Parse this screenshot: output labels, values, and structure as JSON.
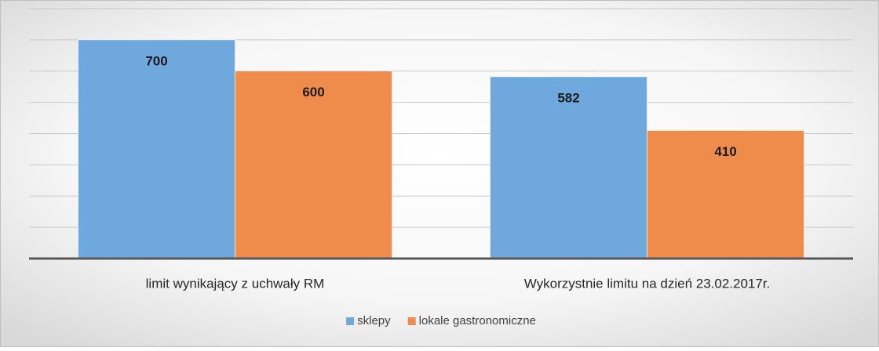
{
  "chart_data": {
    "type": "bar",
    "categories": [
      "limit wynikający z uchwały RM",
      "Wykorzystnie limitu na dzień 23.02.2017r."
    ],
    "series": [
      {
        "name": "sklepy",
        "color": "#6fa8dc",
        "values": [
          700,
          582
        ]
      },
      {
        "name": "lokale gastronomiczne",
        "color": "#ef8c4b",
        "values": [
          600,
          410
        ]
      }
    ],
    "ylim": [
      0,
      800
    ],
    "yticks": [
      0,
      100,
      200,
      300,
      400,
      500,
      600,
      700,
      800
    ],
    "grid": true,
    "legend": "bottom"
  }
}
